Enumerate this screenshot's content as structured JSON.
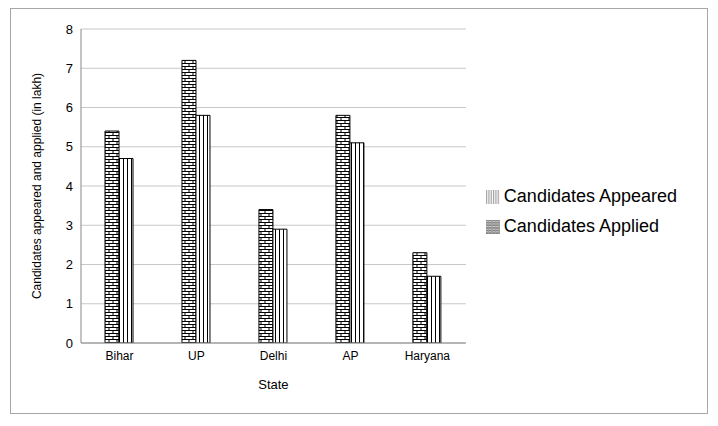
{
  "chart_data": {
    "type": "bar",
    "x_label": "State",
    "y_label": "Candidates appeared and applied (in lakh)",
    "categories": [
      "Bihar",
      "UP",
      "Delhi",
      "AP",
      "Haryana"
    ],
    "series": [
      {
        "name": "Candidates Applied",
        "color": "#000000",
        "marker": "brick",
        "values": [
          5.4,
          7.2,
          3.4,
          5.8,
          2.3
        ]
      },
      {
        "name": "Candidates Appeared",
        "color": "#000000",
        "marker": "vertical",
        "values": [
          4.7,
          5.8,
          2.9,
          5.1,
          1.7
        ]
      }
    ],
    "ylim": [
      0,
      8
    ],
    "yticks": [
      0,
      1,
      2,
      3,
      4,
      5,
      6,
      7,
      8
    ],
    "grid": true,
    "legend": "right"
  }
}
